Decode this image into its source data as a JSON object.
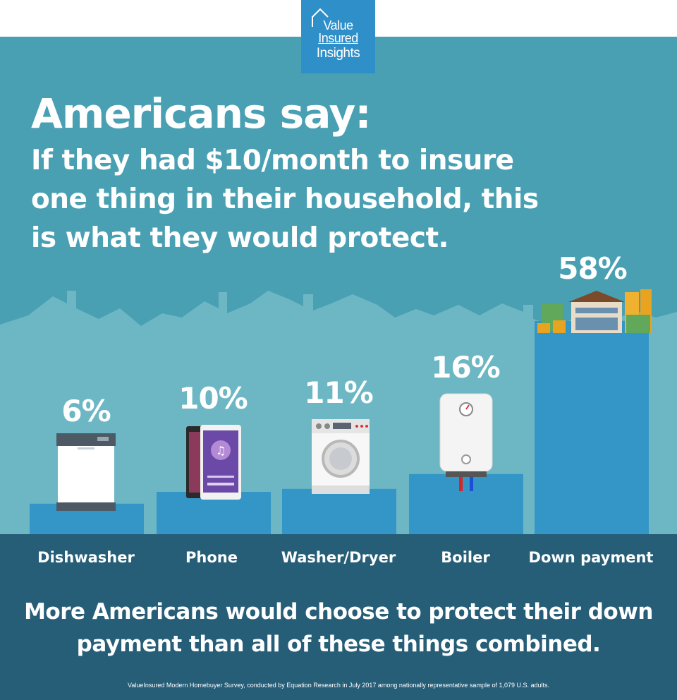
{
  "logo": {
    "line1": "Value",
    "line2": "Insured",
    "line3": "Insights"
  },
  "headline": "Americans say:",
  "subheadline": "If they had $10/month to insure one thing in their household, this is what they would protect.",
  "chart_data": {
    "type": "bar",
    "categories": [
      "Dishwasher",
      "Phone",
      "Washer/Dryer",
      "Boiler",
      "Down payment"
    ],
    "values": [
      6,
      10,
      11,
      16,
      58
    ],
    "value_labels": [
      "6%",
      "10%",
      "11%",
      "16%",
      "58%"
    ],
    "unit": "%",
    "ylim": [
      0,
      60
    ],
    "bar_color": "#3396c6",
    "icons": [
      "dishwasher-icon",
      "smartphone-icon",
      "washing-machine-icon",
      "water-heater-icon",
      "house-with-money-icon"
    ]
  },
  "takeaway": "More Americans would choose to protect their down payment than all of these things combined.",
  "source": "ValueInsured Modern Homebuyer Survey, conducted by Equation Research in July 2017 among nationally representative sample of 1,079 U.S. adults.",
  "colors": {
    "background": "#4aa0b3",
    "skyline": "#6db7c5",
    "bar": "#3396c6",
    "footer": "#265e78",
    "logo": "#2f8fc9",
    "text": "#ffffff"
  }
}
